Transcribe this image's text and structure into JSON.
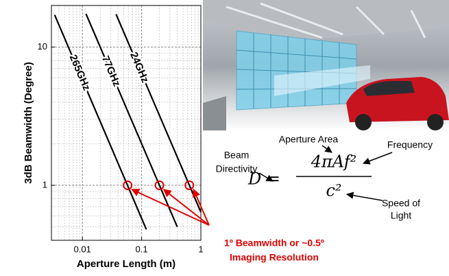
{
  "chart_data": {
    "type": "line",
    "xlabel": "Aperture Length (m)",
    "ylabel": "3dB Beamwidth (Degree)",
    "xscale": "log",
    "yscale": "log",
    "xlim": [
      0.003,
      1
    ],
    "ylim": [
      0.4,
      20
    ],
    "xticks": [
      0.01,
      0.1,
      1
    ],
    "yticks": [
      1,
      10
    ],
    "grid": true,
    "minor_grid": true,
    "series": [
      {
        "name": "265GHz",
        "color": "#000000",
        "x": [
          0.0034,
          0.12
        ],
        "values": [
          17.1,
          0.48
        ]
      },
      {
        "name": "77GHz",
        "color": "#000000",
        "x": [
          0.0115,
          0.4
        ],
        "values": [
          17.4,
          0.5
        ]
      },
      {
        "name": "24GHz",
        "color": "#000000",
        "x": [
          0.037,
          1
        ],
        "values": [
          17.3,
          0.64
        ]
      }
    ],
    "highlight": {
      "color": "#e00000",
      "x": [
        0.058,
        0.2,
        0.64
      ],
      "y": [
        1,
        1,
        1
      ]
    },
    "annotation": [
      "1º Beamwidth or ~0.5º",
      "Imaging Resolution"
    ]
  },
  "equation": {
    "lhs": "D =",
    "numerator": "4πAf²",
    "denominator": "c²",
    "labels": {
      "aperture_area": "Aperture Area",
      "frequency": "Frequency",
      "beam_directivity": [
        "Beam",
        "Directivity"
      ],
      "speed_of_light": [
        "Speed of",
        "Light"
      ]
    }
  }
}
